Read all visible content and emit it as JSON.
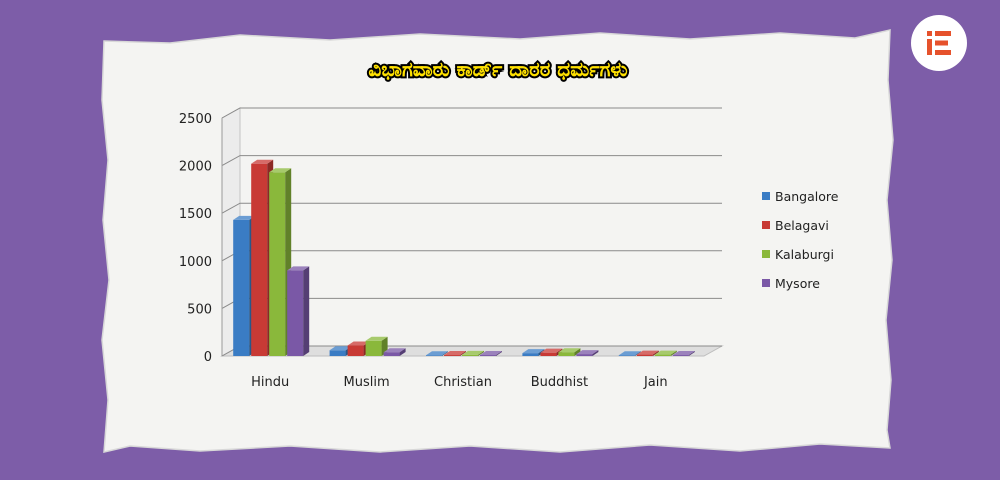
{
  "chart_data": {
    "type": "bar",
    "title": "ವಿಭಾಗವಾರು ಕಾರ್ಡ್ ದಾರರ ಧರ್ಮಗಳು",
    "xlabel": "",
    "ylabel": "",
    "ylim": [
      0,
      2500
    ],
    "yticks": [
      "0",
      "500",
      "1000",
      "1500",
      "2000",
      "2500"
    ],
    "ytick_values": [
      0,
      500,
      1000,
      1500,
      2000,
      2500
    ],
    "grid": true,
    "legend_position": "right",
    "categories": [
      "Hindu",
      "Muslim",
      "Christian",
      "Buddhist",
      "Jain"
    ],
    "series": [
      {
        "name": "Bangalore",
        "color": "#3a7cc4",
        "values": [
          1430,
          60,
          8,
          30,
          8
        ]
      },
      {
        "name": "Belagavi",
        "color": "#c83a35",
        "values": [
          2020,
          110,
          10,
          35,
          15
        ]
      },
      {
        "name": "Kalaburgi",
        "color": "#8ab83b",
        "values": [
          1930,
          160,
          12,
          40,
          15
        ]
      },
      {
        "name": "Mysore",
        "color": "#7a58a6",
        "values": [
          900,
          40,
          10,
          20,
          10
        ]
      }
    ]
  },
  "logo": {
    "name": "logo-mark",
    "color": "#e6522c"
  }
}
